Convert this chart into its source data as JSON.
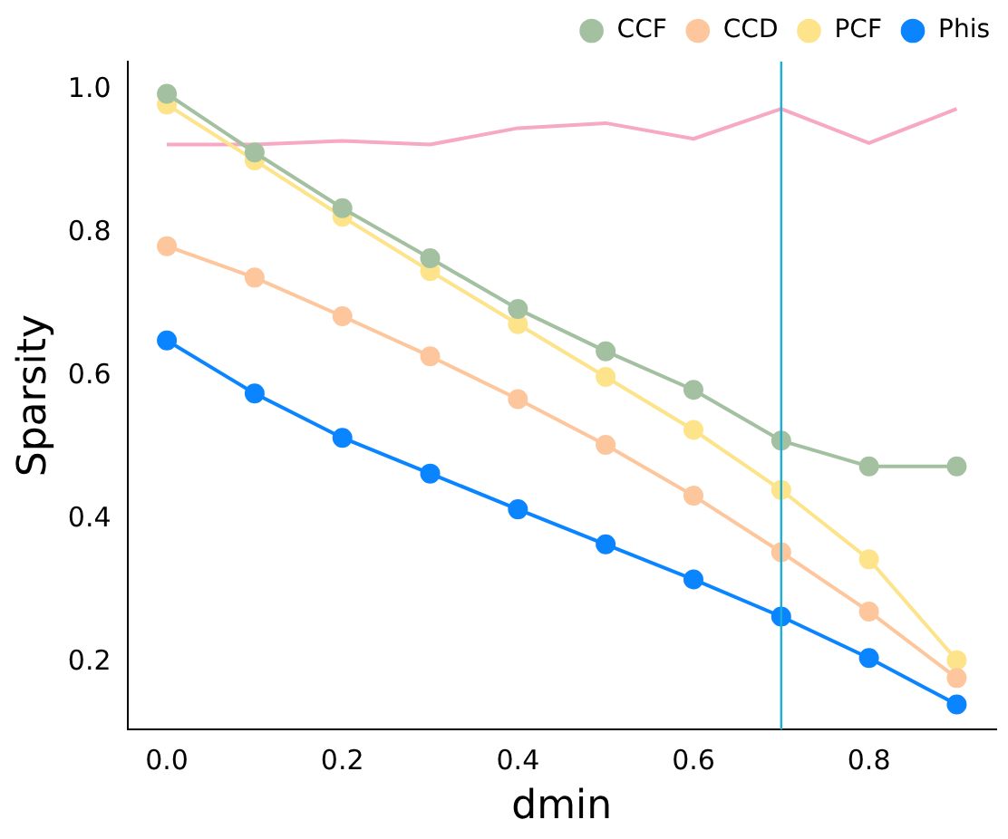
{
  "chart_data": {
    "type": "line",
    "xlabel": "dmin",
    "ylabel": "Sparsity",
    "x": [
      0,
      0.1,
      0.2,
      0.3,
      0.4,
      0.5,
      0.6,
      0.7,
      0.8,
      0.9
    ],
    "series": [
      {
        "name": "CCF",
        "color": "#a3c1a0",
        "values": [
          0.995,
          0.913,
          0.835,
          0.765,
          0.694,
          0.635,
          0.581,
          0.51,
          0.474,
          0.474
        ]
      },
      {
        "name": "CCD",
        "color": "#fdc69c",
        "values": [
          0.782,
          0.738,
          0.684,
          0.628,
          0.568,
          0.504,
          0.433,
          0.354,
          0.271,
          0.178
        ]
      },
      {
        "name": "PCF",
        "color": "#fde38a",
        "values": [
          0.98,
          0.902,
          0.823,
          0.747,
          0.673,
          0.599,
          0.525,
          0.441,
          0.344,
          0.203
        ]
      },
      {
        "name": "Phis",
        "color": "#0a84ff",
        "values": [
          0.65,
          0.576,
          0.514,
          0.464,
          0.414,
          0.365,
          0.316,
          0.264,
          0.206,
          0.141
        ]
      },
      {
        "color": "#f7a8c4",
        "marker": "none",
        "values": [
          0.924,
          0.924,
          0.929,
          0.924,
          0.947,
          0.954,
          0.932,
          0.974,
          0.926,
          0.974
        ]
      }
    ],
    "xlim": [
      -0.045,
      0.945
    ],
    "ylim": [
      0.106,
      1.04
    ],
    "xticks": [
      {
        "value": 0,
        "label": "0.0"
      },
      {
        "value": 0.2,
        "label": "0.2"
      },
      {
        "value": 0.4,
        "label": "0.4"
      },
      {
        "value": 0.6,
        "label": "0.6"
      },
      {
        "value": 0.8,
        "label": "0.8"
      }
    ],
    "yticks": [
      0.2,
      0.4,
      0.6,
      0.8,
      {
        "value": 1,
        "label": "1.0"
      }
    ],
    "ref_lines": [
      {
        "axis": "x",
        "value": 0.7,
        "color": "#1ab0d8"
      }
    ],
    "marker": "circle",
    "grid": false,
    "legend": "top right"
  }
}
